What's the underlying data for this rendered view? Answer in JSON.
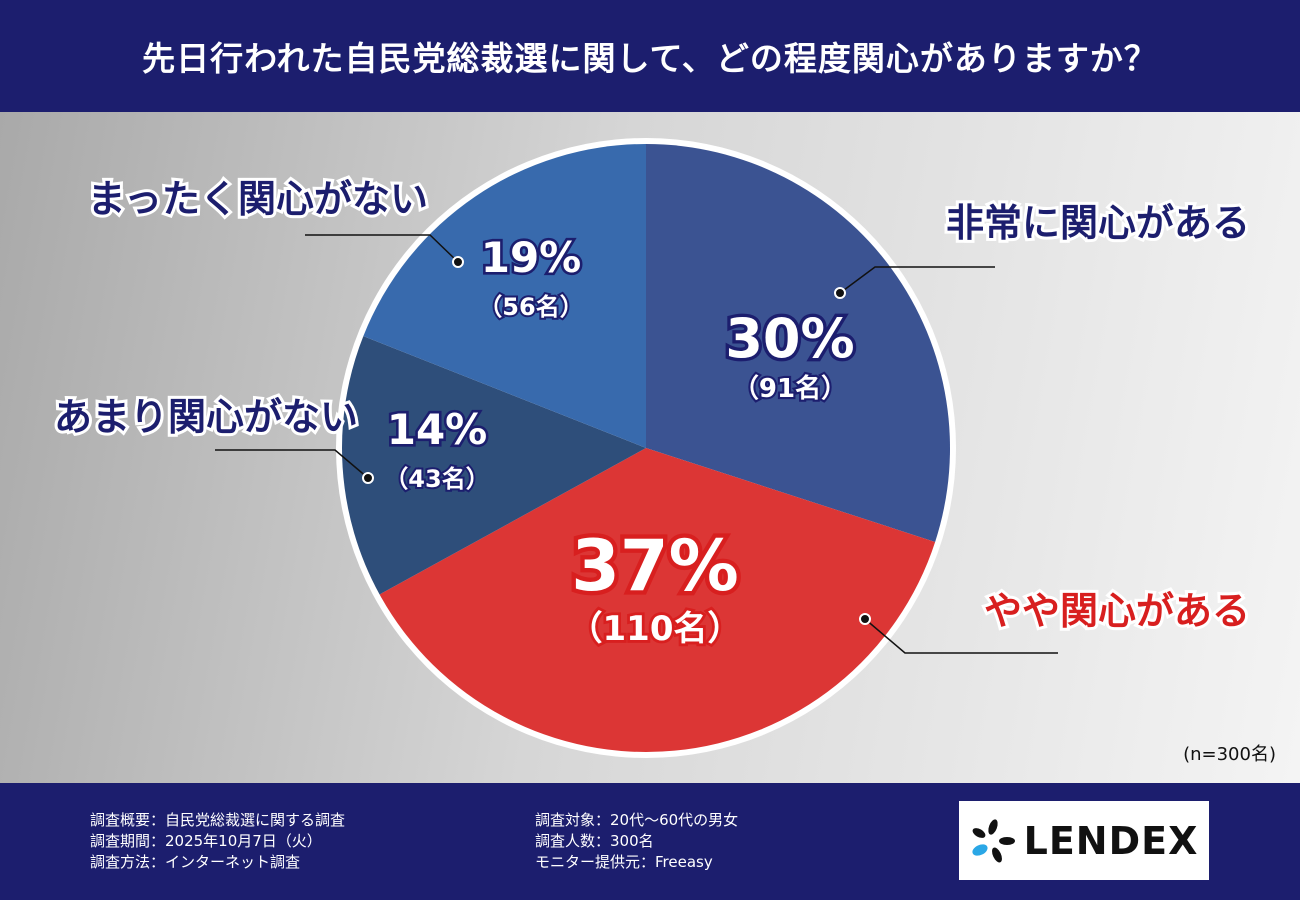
{
  "header": {
    "title": "先日行われた自民党総裁選に関して、どの程度関心がありますか？"
  },
  "chart_data": {
    "type": "pie",
    "title": "先日行われた自民党総裁選に関して、どの程度関心がありますか？",
    "categories": [
      "非常に関心がある",
      "やや関心がある",
      "あまり関心がない",
      "まったく関心がない"
    ],
    "values": [
      30,
      37,
      14,
      19
    ],
    "counts": [
      91,
      110,
      43,
      56
    ],
    "pct_labels": [
      "30%",
      "37%",
      "14%",
      "19%"
    ],
    "count_labels": [
      "（91名）",
      "（110名）",
      "（43名）",
      "（56名）"
    ],
    "colors": [
      "#3b5392",
      "#dc3635",
      "#2e4e7a",
      "#386aad"
    ],
    "label_colors": [
      "#1c1e6e",
      "#d81f1f",
      "#1c1e6e",
      "#1c1e6e"
    ],
    "start": "top",
    "direction": "clockwise",
    "n_label": "(n=300名)"
  },
  "footer": {
    "left": [
      "調査概要：自民党総裁選に関する調査",
      "調査期間：2025年10月7日（火）",
      "調査方法：インターネット調査"
    ],
    "right": [
      "調査対象：20代〜60代の男女",
      "調査人数：300名",
      "モニター提供元：Freeasy"
    ],
    "logo": "LENDEX"
  }
}
